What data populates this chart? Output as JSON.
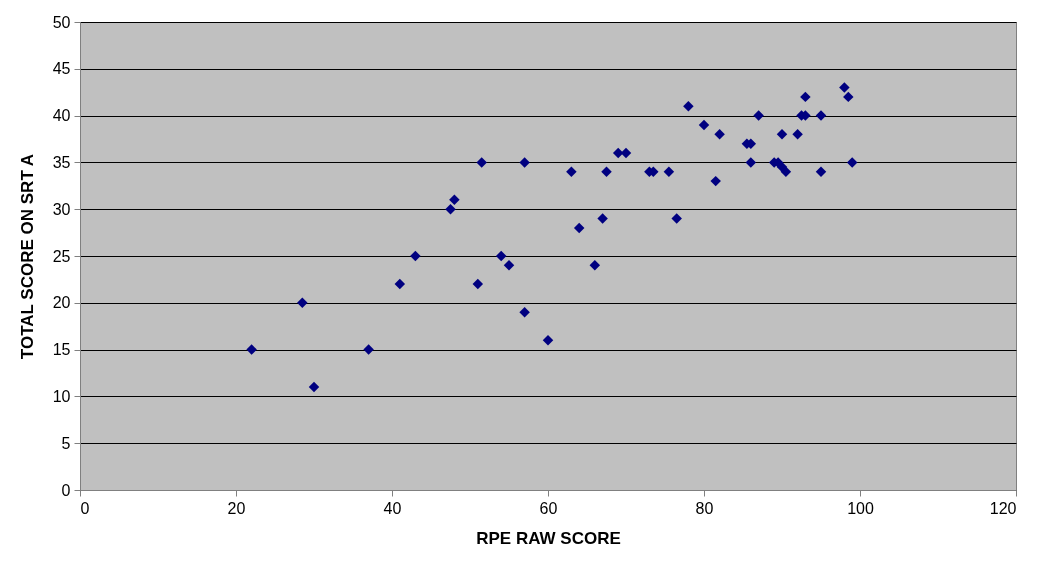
{
  "chart_data": {
    "type": "scatter",
    "xlabel": "RPE RAW SCORE",
    "ylabel": "TOTAL SCORE ON SRT A",
    "x": [
      22,
      28.5,
      30,
      37,
      41,
      43,
      47.5,
      48,
      51,
      51.5,
      54,
      55,
      57,
      57,
      60,
      63,
      64,
      66,
      67,
      67.5,
      69,
      70,
      73,
      73.5,
      75.5,
      76.5,
      78,
      80,
      82,
      81.5,
      85.5,
      86,
      86,
      87,
      89,
      89.5,
      90,
      90,
      90.5,
      92,
      92.5,
      93,
      93,
      95,
      95,
      98,
      98.5,
      99
    ],
    "series": [
      {
        "color": "#000080",
        "values": [
          15,
          20,
          11,
          15,
          22,
          25,
          30,
          31,
          22,
          35,
          25,
          24,
          35,
          19,
          16,
          34,
          28,
          24,
          29,
          34,
          36,
          36,
          34,
          34,
          34,
          29,
          41,
          39,
          38,
          33,
          37,
          37,
          35,
          40,
          35,
          35,
          38,
          34.5,
          34,
          38,
          40,
          40,
          42,
          40,
          34,
          43,
          42,
          35
        ]
      }
    ],
    "xlim": [
      0,
      120
    ],
    "xticks": [
      0,
      20,
      40,
      60,
      80,
      100,
      120
    ],
    "ylim": [
      0,
      50
    ],
    "yticks": [
      0,
      5,
      10,
      15,
      20,
      25,
      30,
      35,
      40,
      45,
      50
    ],
    "grid": "y",
    "marker": "diamond"
  }
}
